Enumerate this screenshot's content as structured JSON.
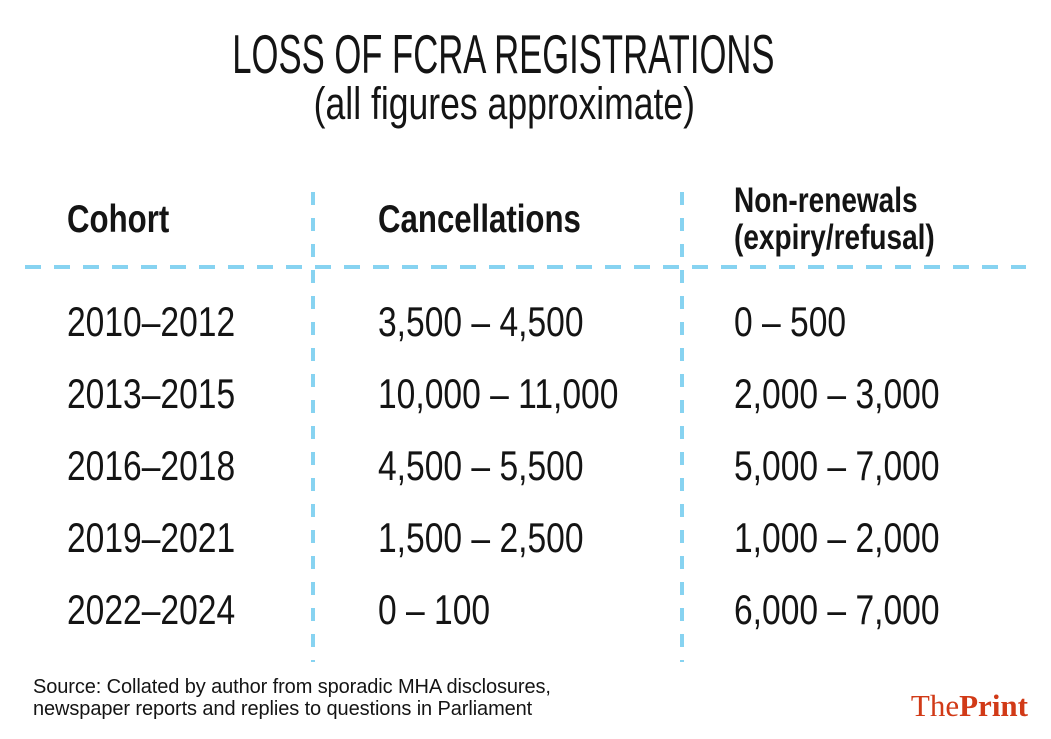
{
  "title": "LOSS OF FCRA REGISTRATIONS",
  "subtitle": "(all figures approximate)",
  "table": {
    "header": {
      "cohort": "Cohort",
      "cancellations": "Cancellations",
      "non_renewals_line1": "Non-renewals",
      "non_renewals_line2": "(expiry/refusal)"
    },
    "rows": [
      {
        "cohort": "2010–2012",
        "cancellations": "3,500 – 4,500",
        "non_renewals": "0 – 500"
      },
      {
        "cohort": "2013–2015",
        "cancellations": "10,000 – 11,000",
        "non_renewals": "2,000 – 3,000"
      },
      {
        "cohort": "2016–2018",
        "cancellations": "4,500 – 5,500",
        "non_renewals": "5,000 – 7,000"
      },
      {
        "cohort": "2019–2021",
        "cancellations": "1,500 – 2,500",
        "non_renewals": "1,000 – 2,000"
      },
      {
        "cohort": "2022–2024",
        "cancellations": "0 – 100",
        "non_renewals": "6,000 – 7,000"
      }
    ]
  },
  "chart_data": {
    "type": "table",
    "title": "LOSS OF FCRA REGISTRATIONS",
    "subtitle": "(all figures approximate)",
    "columns": [
      "Cohort",
      "Cancellations",
      "Non-renewals (expiry/refusal)"
    ],
    "rows": [
      [
        "2010–2012",
        "3,500 – 4,500",
        "0 – 500"
      ],
      [
        "2013–2015",
        "10,000 – 11,000",
        "2,000 – 3,000"
      ],
      [
        "2016–2018",
        "4,500 – 5,500",
        "5,000 – 7,000"
      ],
      [
        "2019–2021",
        "1,500 – 2,500",
        "1,000 – 2,000"
      ],
      [
        "2022–2024",
        "0 – 100",
        "6,000 – 7,000"
      ]
    ],
    "source": "Source: Collated by author from sporadic MHA disclosures, newspaper reports and replies to questions in Parliament"
  },
  "source": {
    "line1": "Source: Collated by author from sporadic MHA disclosures,",
    "line2": "newspaper reports and replies to questions in Parliament"
  },
  "branding": {
    "the": "The",
    "print": "Print"
  },
  "colors": {
    "background": "#ffffff",
    "text": "#141414",
    "divider": "#87d3f1",
    "brand": "#d13a17"
  }
}
